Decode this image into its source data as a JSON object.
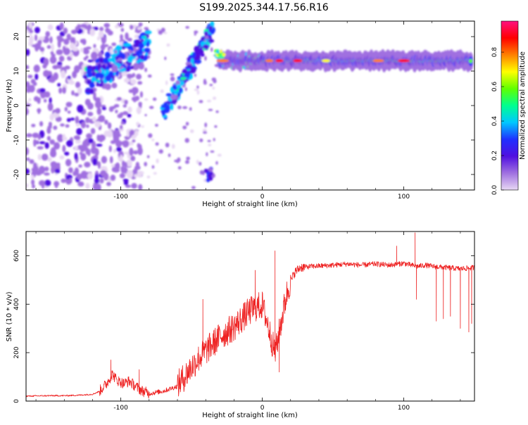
{
  "title": "S199.2025.344.17.56.R16",
  "colors": {
    "snr_line": "#ee2222",
    "axis": "#000000",
    "background": "#ffffff"
  },
  "chart_data": [
    {
      "type": "heatmap",
      "name": "spectrogram",
      "xlabel": "Height of straight line (km)",
      "ylabel": "Frequency (Hz)",
      "xlim": [
        -167,
        150
      ],
      "ylim": [
        -24.5,
        24.5
      ],
      "x_ticks": [
        -100,
        0,
        100
      ],
      "y_ticks": [
        -20,
        -10,
        0,
        10,
        20
      ],
      "colorbar": {
        "label": "Normalized spectral amplitude",
        "range": [
          0,
          0.98
        ],
        "ticks": [
          "0.0",
          "0.2",
          "0.4",
          "0.6",
          "0.8"
        ],
        "colormap": [
          "#e8d8f4",
          "#a070e0",
          "#5010e0",
          "#2030ff",
          "#00c8ff",
          "#00ff90",
          "#60ff00",
          "#ffff00",
          "#ff8000",
          "#ff0000",
          "#ff1080"
        ]
      },
      "features": [
        {
          "name": "steady-tone",
          "x_range": [
            -30,
            148
          ],
          "freq_hz": 13,
          "amplitude": 0.5
        },
        {
          "name": "rising-chirp",
          "x_range": [
            -70,
            -35
          ],
          "freq_hz": [
            -2,
            22
          ],
          "amplitude": 0.35
        },
        {
          "name": "early-cluster",
          "x_range": [
            -125,
            -80
          ],
          "freq_hz": [
            7,
            18
          ],
          "amplitude": 0.3
        },
        {
          "name": "broadband-noise",
          "x_range": [
            -167,
            -100
          ],
          "freq_hz": [
            -24,
            24
          ],
          "amplitude": 0.1
        }
      ]
    },
    {
      "type": "line",
      "name": "snr",
      "xlabel": "Height of straight line (km)",
      "ylabel": "SNR (10 * v/v)",
      "xlim": [
        -167,
        150
      ],
      "ylim": [
        0,
        700
      ],
      "x_ticks": [
        -100,
        0,
        100
      ],
      "y_ticks": [
        0,
        200,
        400,
        600
      ],
      "series": [
        {
          "name": "SNR",
          "color": "#ee2222",
          "points": [
            [
              -167,
              20
            ],
            [
              -160,
              21
            ],
            [
              -150,
              22
            ],
            [
              -140,
              22
            ],
            [
              -130,
              24
            ],
            [
              -120,
              28
            ],
            [
              -115,
              40
            ],
            [
              -110,
              70
            ],
            [
              -106,
              110
            ],
            [
              -103,
              85
            ],
            [
              -98,
              70
            ],
            [
              -94,
              80
            ],
            [
              -90,
              60
            ],
            [
              -85,
              40
            ],
            [
              -80,
              30
            ],
            [
              -75,
              35
            ],
            [
              -70,
              40
            ],
            [
              -65,
              50
            ],
            [
              -60,
              60
            ],
            [
              -55,
              95
            ],
            [
              -50,
              135
            ],
            [
              -45,
              170
            ],
            [
              -40,
              200
            ],
            [
              -35,
              230
            ],
            [
              -30,
              260
            ],
            [
              -25,
              280
            ],
            [
              -20,
              300
            ],
            [
              -15,
              330
            ],
            [
              -10,
              360
            ],
            [
              -5,
              380
            ],
            [
              0,
              390
            ],
            [
              3,
              330
            ],
            [
              6,
              260
            ],
            [
              9,
              190
            ],
            [
              11,
              250
            ],
            [
              14,
              340
            ],
            [
              17,
              430
            ],
            [
              20,
              490
            ],
            [
              23,
              530
            ],
            [
              27,
              550
            ],
            [
              35,
              555
            ],
            [
              50,
              560
            ],
            [
              60,
              565
            ],
            [
              70,
              560
            ],
            [
              80,
              565
            ],
            [
              90,
              560
            ],
            [
              100,
              568
            ],
            [
              105,
              560
            ],
            [
              110,
              555
            ],
            [
              115,
              560
            ],
            [
              120,
              555
            ],
            [
              130,
              550
            ],
            [
              140,
              545
            ],
            [
              150,
              550
            ]
          ],
          "spikes": [
            {
              "x": -107,
              "y": 170
            },
            {
              "x": -87,
              "y": 130
            },
            {
              "x": -42,
              "y": 420
            },
            {
              "x": -5,
              "y": 540
            },
            {
              "x": 9,
              "y": 620
            },
            {
              "x": 12,
              "y": 120
            },
            {
              "x": 95,
              "y": 640
            },
            {
              "x": 108,
              "y": 695
            },
            {
              "x": 109,
              "y": 420
            },
            {
              "x": 123,
              "y": 330
            },
            {
              "x": 128,
              "y": 340
            },
            {
              "x": 133,
              "y": 350
            },
            {
              "x": 140,
              "y": 300
            },
            {
              "x": 146,
              "y": 285
            },
            {
              "x": 148,
              "y": 320
            }
          ]
        }
      ]
    }
  ]
}
